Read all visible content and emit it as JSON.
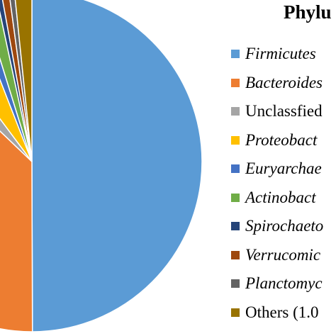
{
  "chart_data": {
    "type": "pie",
    "title": "Phylu",
    "series": [
      {
        "name": "Firmicutes",
        "value": 49.0,
        "color": "#5B9BD5",
        "italic": true
      },
      {
        "name": "Bacteroides",
        "value": 36.5,
        "color": "#ED7D31",
        "italic": true
      },
      {
        "name": "Unclassfied",
        "value": 2.6,
        "color": "#A5A5A5",
        "italic": false
      },
      {
        "name": "Proteobact",
        "value": 4.2,
        "color": "#FFC000",
        "italic": true
      },
      {
        "name": "Euryarchae",
        "value": 1.1,
        "color": "#4472C4",
        "italic": true
      },
      {
        "name": "Actinobact",
        "value": 1.4,
        "color": "#70AD47",
        "italic": true
      },
      {
        "name": "Spirochaeto",
        "value": 0.5,
        "color": "#264478",
        "italic": true
      },
      {
        "name": "Verrucomic",
        "value": 0.7,
        "color": "#9E480E",
        "italic": true
      },
      {
        "name": "Planctomyc",
        "value": 0.5,
        "color": "#636363",
        "italic": true
      },
      {
        "name": "Others  (1.0",
        "value": 1.6,
        "color": "#997300",
        "italic": false
      }
    ]
  }
}
